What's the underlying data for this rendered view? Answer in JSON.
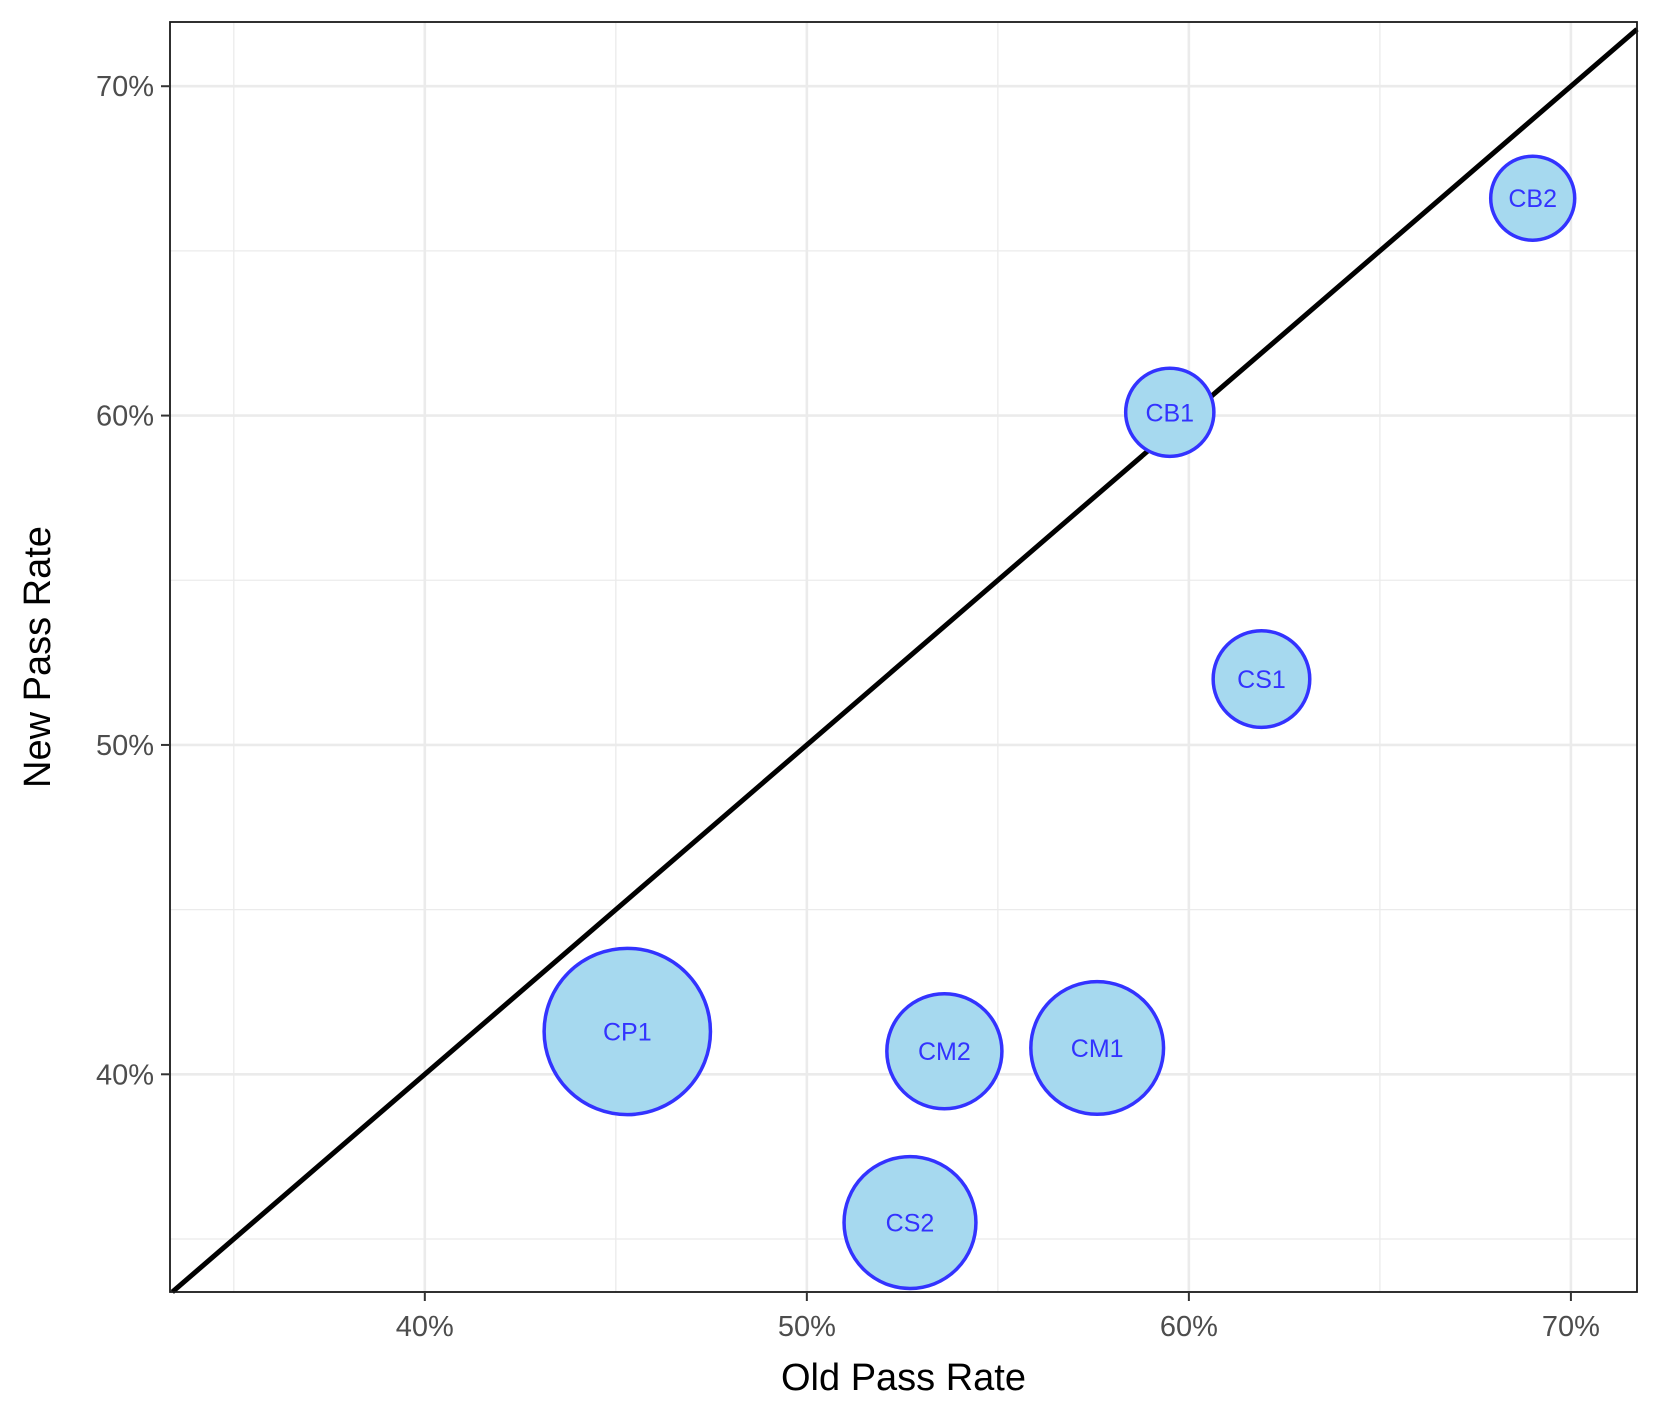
{
  "chart_data": {
    "type": "scatter",
    "title": "",
    "xlabel": "Old Pass Rate",
    "ylabel": "New Pass Rate",
    "xlim": [
      0.3333,
      0.7173
    ],
    "ylim": [
      0.3339,
      0.7195
    ],
    "x_ticks": [
      {
        "value": 0.4,
        "label": "40%"
      },
      {
        "value": 0.5,
        "label": "50%"
      },
      {
        "value": 0.6,
        "label": "60%"
      },
      {
        "value": 0.7,
        "label": "70%"
      }
    ],
    "y_ticks": [
      {
        "value": 0.4,
        "label": "40%"
      },
      {
        "value": 0.5,
        "label": "50%"
      },
      {
        "value": 0.6,
        "label": "60%"
      },
      {
        "value": 0.7,
        "label": "70%"
      }
    ],
    "x_minor_grid": [
      0.35,
      0.45,
      0.55,
      0.65
    ],
    "y_minor_grid": [
      0.35,
      0.45,
      0.55,
      0.65
    ],
    "grid": true,
    "reference_line": {
      "type": "y=x",
      "color": "#000000"
    },
    "point_fill": "#a6d9ef",
    "point_stroke": "#3333ff",
    "label_color": "#3333ff",
    "points": [
      {
        "label": "CB2",
        "x": 0.69,
        "y": 0.666,
        "size": 1.0
      },
      {
        "label": "CB1",
        "x": 0.595,
        "y": 0.601,
        "size": 1.05
      },
      {
        "label": "CS1",
        "x": 0.619,
        "y": 0.52,
        "size": 1.15
      },
      {
        "label": "CP1",
        "x": 0.453,
        "y": 0.413,
        "size": 1.98
      },
      {
        "label": "CM2",
        "x": 0.536,
        "y": 0.407,
        "size": 1.37
      },
      {
        "label": "CM1",
        "x": 0.576,
        "y": 0.408,
        "size": 1.58
      },
      {
        "label": "CS2",
        "x": 0.527,
        "y": 0.355,
        "size": 1.57
      }
    ]
  }
}
